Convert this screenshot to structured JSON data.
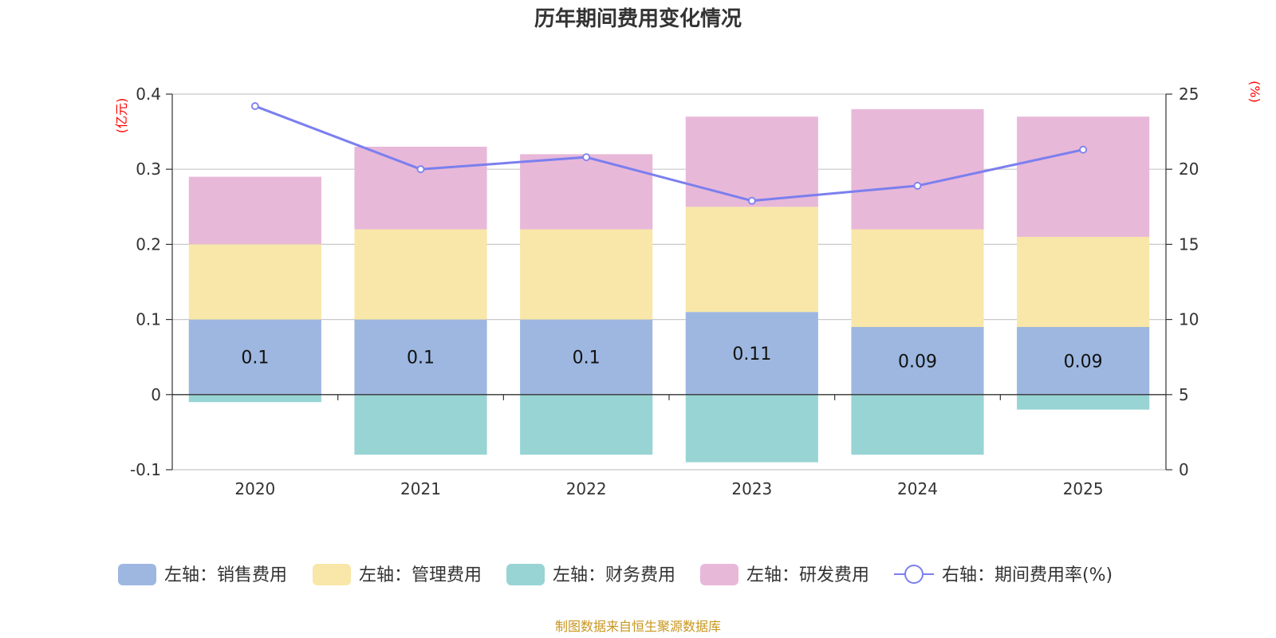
{
  "chart_data": {
    "type": "bar",
    "title": "历年期间费用变化情况",
    "categories": [
      "2020",
      "2021",
      "2022",
      "2023",
      "2024",
      "2025"
    ],
    "series": [
      {
        "name": "左轴：销售费用",
        "axis": "left",
        "stack": "cost",
        "color": "#9db7e0",
        "values": [
          0.1,
          0.1,
          0.1,
          0.11,
          0.09,
          0.09
        ],
        "labels": [
          "0.1",
          "0.1",
          "0.1",
          "0.11",
          "0.09",
          "0.09"
        ]
      },
      {
        "name": "左轴：管理费用",
        "axis": "left",
        "stack": "cost",
        "color": "#f8e7a8",
        "values": [
          0.1,
          0.12,
          0.12,
          0.14,
          0.13,
          0.12
        ]
      },
      {
        "name": "左轴：财务费用",
        "axis": "left",
        "stack": "cost",
        "color": "#98d4d4",
        "values": [
          -0.01,
          -0.08,
          -0.08,
          -0.09,
          -0.08,
          -0.02
        ]
      },
      {
        "name": "左轴：研发费用",
        "axis": "left",
        "stack": "cost",
        "color": "#e8b8d9",
        "values": [
          0.09,
          0.11,
          0.1,
          0.12,
          0.16,
          0.16
        ]
      },
      {
        "name": "右轴：期间费用率(%)",
        "axis": "right",
        "type": "line",
        "color": "#7b7fee",
        "values": [
          24.2,
          20.0,
          20.8,
          17.9,
          18.9,
          21.3
        ]
      }
    ],
    "left_axis": {
      "unit": "(亿元)",
      "min": -0.1,
      "max": 0.4,
      "ticks": [
        -0.1,
        0,
        0.1,
        0.2,
        0.3,
        0.4
      ],
      "tick_labels": [
        "-0.1",
        "0",
        "0.1",
        "0.2",
        "0.3",
        "0.4"
      ]
    },
    "right_axis": {
      "unit": "(%)",
      "min": 0,
      "max": 25,
      "ticks": [
        0,
        5,
        10,
        15,
        20,
        25
      ],
      "tick_labels": [
        "0",
        "5",
        "10",
        "15",
        "20",
        "25"
      ]
    },
    "source": "制图数据来自恒生聚源数据库"
  }
}
